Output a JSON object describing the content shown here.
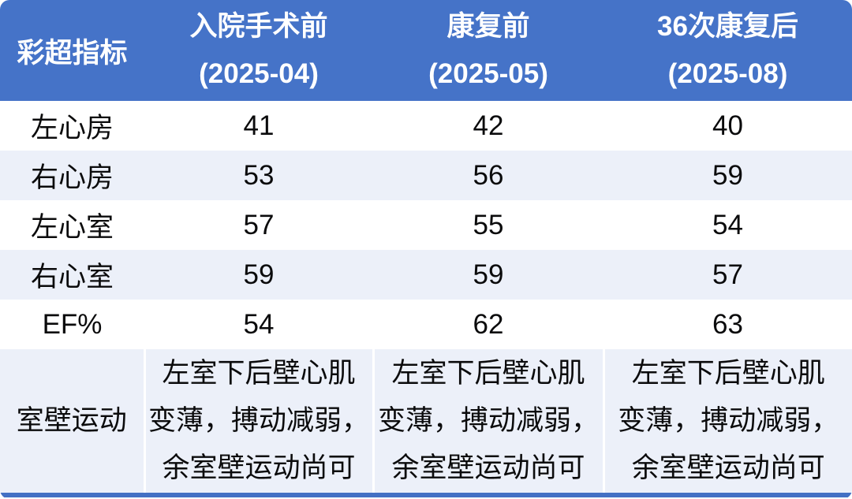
{
  "colors": {
    "header_blue": "#4573C8",
    "header_text": "#FFFFFF",
    "stripe": "#ECF0F9",
    "bottom_bar": "#4370C4",
    "body_text": "#0B0B0C"
  },
  "table": {
    "corner_label": "彩超指标",
    "columns": [
      {
        "title": "入院手术前",
        "subtitle": "(2025-04)"
      },
      {
        "title": "康复前",
        "subtitle": "(2025-05)"
      },
      {
        "title": "36次康复后",
        "subtitle": "(2025-08)"
      }
    ],
    "rows": [
      {
        "label": "左心房",
        "values": [
          "41",
          "42",
          "40"
        ]
      },
      {
        "label": "右心房",
        "values": [
          "53",
          "56",
          "59"
        ]
      },
      {
        "label": "左心室",
        "values": [
          "57",
          "55",
          "54"
        ]
      },
      {
        "label": "右心室",
        "values": [
          "59",
          "59",
          "57"
        ]
      },
      {
        "label": "EF%",
        "values": [
          "54",
          "62",
          "63"
        ]
      }
    ],
    "wall_motion": {
      "label": "室壁运动",
      "values": [
        "左室下后壁心肌\n变薄，搏动减弱，\n余室壁运动尚可",
        "左室下后壁心肌\n变薄，搏动减弱，\n余室壁运动尚可",
        "左室下后壁心肌\n变薄，搏动减弱，\n余室壁运动尚可"
      ]
    }
  },
  "chart_data": {
    "type": "table",
    "columns": [
      "彩超指标",
      "入院手术前 (2025-04)",
      "康复前 (2025-05)",
      "36次康复后 (2025-08)"
    ],
    "rows": [
      [
        "左心房",
        41,
        42,
        40
      ],
      [
        "右心房",
        53,
        56,
        59
      ],
      [
        "左心室",
        57,
        55,
        54
      ],
      [
        "右心室",
        59,
        59,
        57
      ],
      [
        "EF%",
        54,
        62,
        63
      ],
      [
        "室壁运动",
        "左室下后壁心肌变薄，搏动减弱，余室壁运动尚可",
        "左室下后壁心肌变薄，搏动减弱，余室壁运动尚可",
        "左室下后壁心肌变薄，搏动减弱，余室壁运动尚可"
      ]
    ]
  }
}
